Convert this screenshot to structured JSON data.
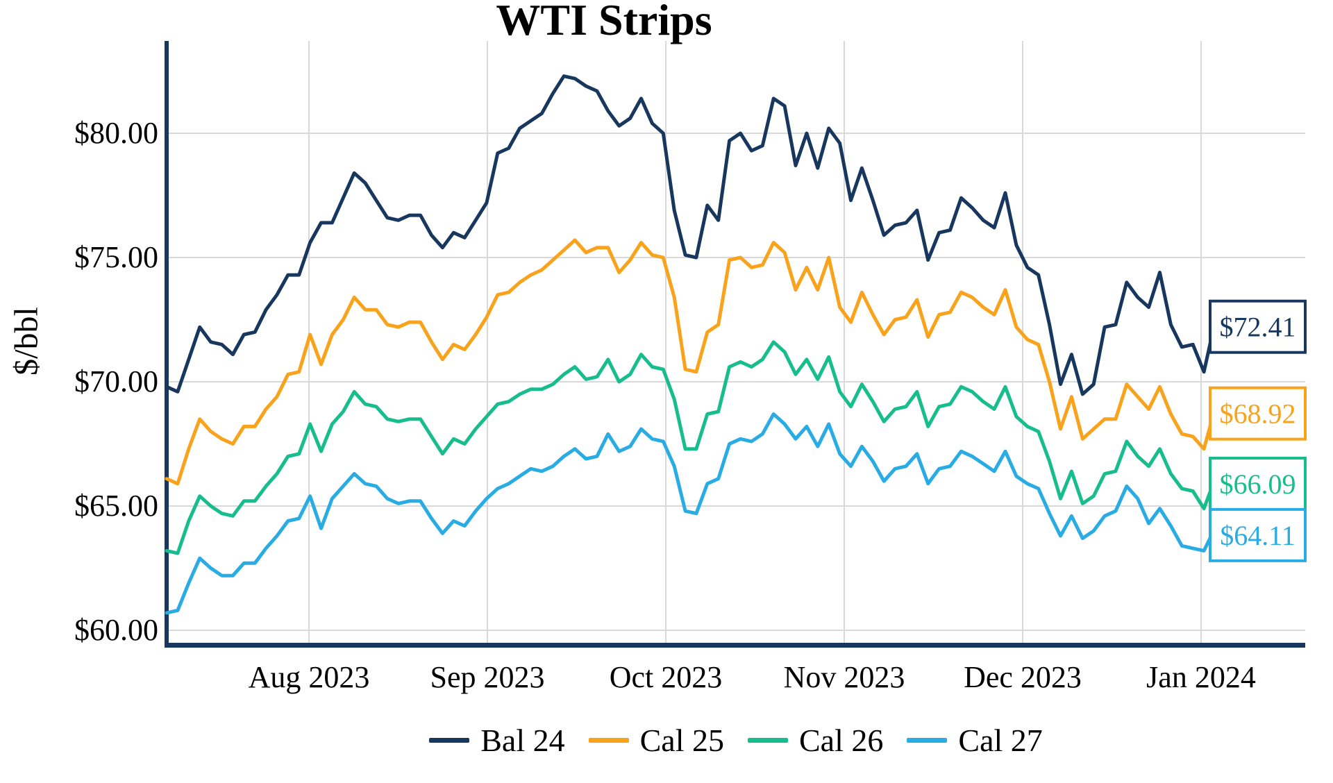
{
  "chart": {
    "background": "#ffffff",
    "grid_color": "#d9d9d9",
    "axis_color": "#17375e",
    "text_color": "#000000"
  },
  "chart_data": {
    "type": "line",
    "title": "WTI Strips",
    "xlabel": "",
    "ylabel": "$/bbl",
    "grid": true,
    "legend_position": "bottom",
    "ylim": [
      59.4,
      83.7
    ],
    "x_range_note": "daily strip prices, early Jul 2023 through mid Jan 2024",
    "x_tick_labels": [
      "Aug 2023",
      "Sep 2023",
      "Oct 2023",
      "Nov 2023",
      "Dec 2023",
      "Jan 2024"
    ],
    "y_ticks": [
      {
        "value": 60,
        "label": "$60.00"
      },
      {
        "value": 65,
        "label": "$65.00"
      },
      {
        "value": 70,
        "label": "$70.00"
      },
      {
        "value": 75,
        "label": "$75.00"
      },
      {
        "value": 80,
        "label": "$80.00"
      }
    ],
    "series": [
      {
        "name": "Bal 24",
        "color": "#17375e",
        "end_label": "$72.41",
        "final_value": 72.41,
        "values": [
          69.8,
          69.6,
          70.9,
          72.2,
          71.6,
          71.5,
          71.1,
          71.9,
          72.0,
          72.9,
          73.5,
          74.3,
          74.3,
          75.6,
          76.4,
          76.4,
          77.4,
          78.4,
          78.0,
          77.3,
          76.6,
          76.5,
          76.7,
          76.7,
          75.9,
          75.4,
          76.0,
          75.8,
          76.5,
          77.2,
          79.2,
          79.4,
          80.2,
          80.5,
          80.8,
          81.6,
          82.3,
          82.2,
          81.9,
          81.7,
          80.9,
          80.3,
          80.6,
          81.4,
          80.4,
          80.0,
          76.9,
          75.1,
          75.0,
          77.1,
          76.5,
          79.7,
          80.0,
          79.3,
          79.5,
          81.4,
          81.1,
          78.7,
          80.0,
          78.6,
          80.2,
          79.6,
          77.3,
          78.6,
          77.3,
          75.9,
          76.3,
          76.4,
          76.9,
          74.9,
          76.0,
          76.1,
          77.4,
          77.0,
          76.5,
          76.2,
          77.6,
          75.5,
          74.6,
          74.3,
          72.3,
          69.9,
          71.1,
          69.5,
          69.9,
          72.2,
          72.3,
          74.0,
          73.4,
          73.0,
          74.4,
          72.3,
          71.4,
          71.5,
          70.4,
          72.41
        ]
      },
      {
        "name": "Cal 25",
        "color": "#f9a21b",
        "end_label": "$68.92",
        "final_value": 68.92,
        "values": [
          66.1,
          65.9,
          67.3,
          68.5,
          68.0,
          67.7,
          67.5,
          68.2,
          68.2,
          68.9,
          69.4,
          70.3,
          70.4,
          71.9,
          70.7,
          71.9,
          72.5,
          73.4,
          72.9,
          72.9,
          72.3,
          72.2,
          72.4,
          72.4,
          71.6,
          70.9,
          71.5,
          71.3,
          71.9,
          72.6,
          73.5,
          73.6,
          74.0,
          74.3,
          74.5,
          74.9,
          75.3,
          75.7,
          75.2,
          75.4,
          75.4,
          74.4,
          74.9,
          75.6,
          75.1,
          75.0,
          73.4,
          70.5,
          70.4,
          72.0,
          72.3,
          74.9,
          75.0,
          74.6,
          74.7,
          75.6,
          75.2,
          73.7,
          74.6,
          73.7,
          75.0,
          73.0,
          72.4,
          73.6,
          72.7,
          71.9,
          72.5,
          72.6,
          73.3,
          71.8,
          72.7,
          72.8,
          73.6,
          73.4,
          73.0,
          72.7,
          73.7,
          72.2,
          71.7,
          71.5,
          70.0,
          68.1,
          69.4,
          67.7,
          68.1,
          68.5,
          68.5,
          69.9,
          69.4,
          68.9,
          69.8,
          68.7,
          67.9,
          67.8,
          67.3,
          68.92
        ]
      },
      {
        "name": "Cal 26",
        "color": "#18bd8d",
        "end_label": "$66.09",
        "final_value": 66.09,
        "values": [
          63.2,
          63.1,
          64.4,
          65.4,
          65.0,
          64.7,
          64.6,
          65.2,
          65.2,
          65.8,
          66.3,
          67.0,
          67.1,
          68.3,
          67.2,
          68.3,
          68.8,
          69.6,
          69.1,
          69.0,
          68.5,
          68.4,
          68.5,
          68.5,
          67.8,
          67.1,
          67.7,
          67.5,
          68.1,
          68.6,
          69.1,
          69.2,
          69.5,
          69.7,
          69.7,
          69.9,
          70.3,
          70.6,
          70.1,
          70.2,
          70.9,
          70.0,
          70.3,
          71.1,
          70.6,
          70.5,
          69.3,
          67.3,
          67.3,
          68.7,
          68.8,
          70.6,
          70.8,
          70.6,
          70.9,
          71.6,
          71.2,
          70.3,
          70.9,
          70.1,
          71.0,
          69.6,
          69.0,
          69.9,
          69.2,
          68.4,
          68.9,
          69.0,
          69.6,
          68.2,
          69.0,
          69.1,
          69.8,
          69.6,
          69.2,
          68.9,
          69.8,
          68.6,
          68.2,
          68.0,
          66.8,
          65.3,
          66.4,
          65.1,
          65.4,
          66.3,
          66.4,
          67.6,
          67.0,
          66.6,
          67.3,
          66.3,
          65.7,
          65.6,
          64.9,
          66.09
        ]
      },
      {
        "name": "Cal 27",
        "color": "#29abe3",
        "end_label": "$64.11",
        "final_value": 64.11,
        "values": [
          60.7,
          60.8,
          61.9,
          62.9,
          62.5,
          62.2,
          62.2,
          62.7,
          62.7,
          63.3,
          63.8,
          64.4,
          64.5,
          65.4,
          64.1,
          65.3,
          65.8,
          66.3,
          65.9,
          65.8,
          65.3,
          65.1,
          65.2,
          65.2,
          64.5,
          63.9,
          64.4,
          64.2,
          64.8,
          65.3,
          65.7,
          65.9,
          66.2,
          66.5,
          66.4,
          66.6,
          67.0,
          67.3,
          66.9,
          67.0,
          67.9,
          67.2,
          67.4,
          68.1,
          67.7,
          67.6,
          66.6,
          64.8,
          64.7,
          65.9,
          66.1,
          67.5,
          67.7,
          67.6,
          67.9,
          68.7,
          68.3,
          67.7,
          68.2,
          67.4,
          68.3,
          67.1,
          66.6,
          67.4,
          66.8,
          66.0,
          66.5,
          66.6,
          67.1,
          65.9,
          66.5,
          66.6,
          67.2,
          67.0,
          66.7,
          66.4,
          67.2,
          66.2,
          65.9,
          65.7,
          64.7,
          63.8,
          64.6,
          63.7,
          64.0,
          64.6,
          64.8,
          65.8,
          65.3,
          64.3,
          64.9,
          64.2,
          63.4,
          63.3,
          63.2,
          64.11
        ]
      }
    ]
  }
}
